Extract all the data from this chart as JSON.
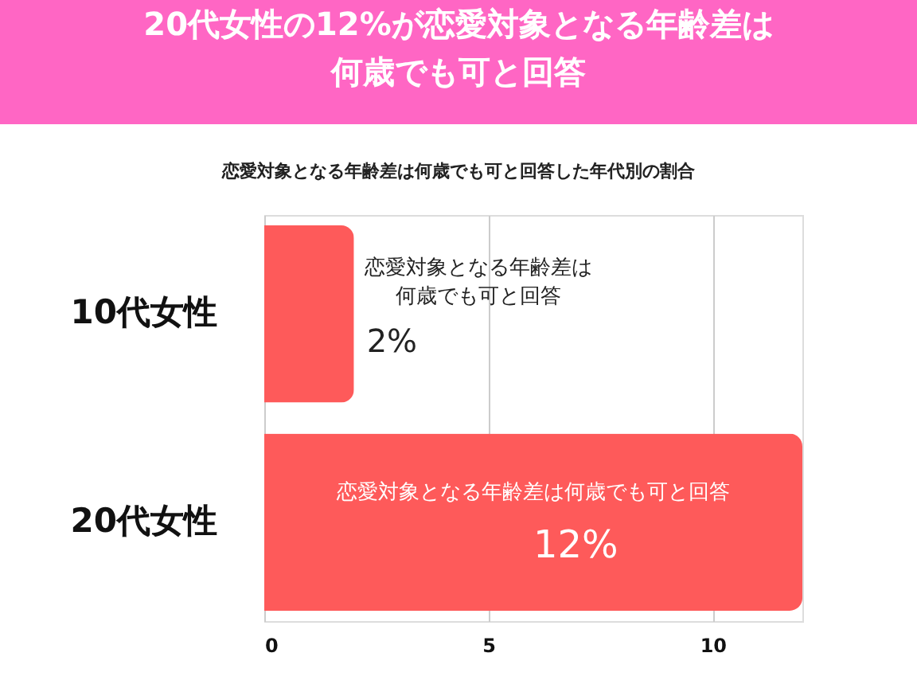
{
  "chart_data": {
    "type": "bar",
    "orientation": "horizontal",
    "title": "20代女性の12%が恋愛対象となる年齢差は何歳でも可と回答",
    "subtitle": "恋愛対象となる年齢差は何歳でも可と回答した年代別の割合",
    "categories": [
      "10代女性",
      "20代女性"
    ],
    "values": [
      2,
      12
    ],
    "color": "#fe5a5a",
    "value_labels": [
      "2%",
      "12%"
    ],
    "annotations": [
      "恋愛対象となる年齢差は何歳でも可と回答",
      "恋愛対象となる年齢差は何歳でも可と回答"
    ],
    "xlim": [
      0,
      12
    ],
    "xticks": [
      0,
      5,
      10
    ],
    "grid": "x"
  }
}
